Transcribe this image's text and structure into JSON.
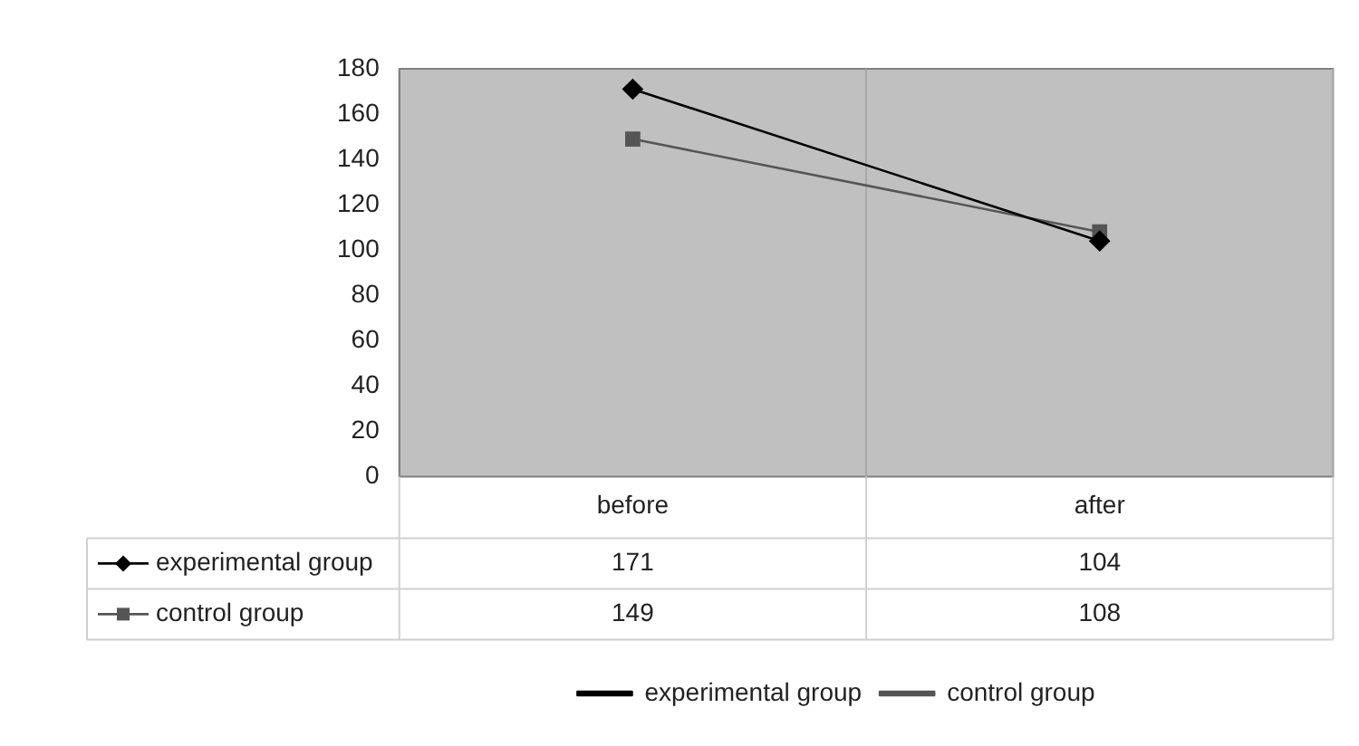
{
  "chart_data": {
    "type": "line",
    "categories": [
      "before",
      "after"
    ],
    "series": [
      {
        "name": "experimental group",
        "color": "#000000",
        "marker": "diamond",
        "values": [
          171,
          104
        ]
      },
      {
        "name": "control group",
        "color": "#555555",
        "marker": "square",
        "values": [
          149,
          108
        ]
      }
    ],
    "ylim": [
      0,
      180
    ],
    "yticks": [
      0,
      20,
      40,
      60,
      80,
      100,
      120,
      140,
      160,
      180
    ],
    "grid": "x",
    "legend": "bottom",
    "data_labels": true,
    "line_style": "solid"
  }
}
